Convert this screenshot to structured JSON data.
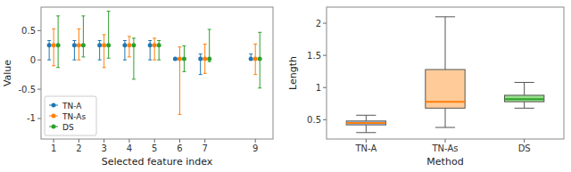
{
  "chart_data": [
    {
      "type": "errorbar",
      "xlabel": "Selected feature index",
      "ylabel": "Value",
      "x": [
        1,
        2,
        3,
        4,
        5,
        6,
        7,
        9
      ],
      "xlim": [
        0.5,
        9.7
      ],
      "xticks": [
        1,
        2,
        3,
        4,
        5,
        6,
        7,
        9
      ],
      "ylim": [
        -1.35,
        0.9
      ],
      "yticks": [
        -1,
        -0.5,
        0,
        0.5
      ],
      "grid": false,
      "legend": "lower left",
      "marker": "circle",
      "series": [
        {
          "name": "TN-A",
          "color": "#1f77b4",
          "values": [
            0.25,
            0.25,
            0.25,
            0.25,
            0.25,
            0.02,
            0.02,
            0.02
          ],
          "error_low": [
            0.25,
            0.25,
            0.25,
            0.25,
            0.25,
            0.02,
            0.27,
            0.02
          ],
          "error_high": [
            0.08,
            0.08,
            0.08,
            0.08,
            0.08,
            0.0,
            0.08,
            0.08
          ]
        },
        {
          "name": "TN-As",
          "color": "#ff7f0e",
          "values": [
            0.25,
            0.25,
            0.25,
            0.25,
            0.25,
            0.02,
            0.02,
            0.02
          ],
          "error_low": [
            0.35,
            0.25,
            0.38,
            0.2,
            0.25,
            0.95,
            0.25,
            0.27
          ],
          "error_high": [
            0.28,
            0.28,
            0.18,
            0.15,
            0.12,
            0.2,
            0.25,
            0.25
          ]
        },
        {
          "name": "DS",
          "color": "#2ca02c",
          "values": [
            0.25,
            0.25,
            0.25,
            0.25,
            0.25,
            0.02,
            0.02,
            0.02
          ],
          "error_low": [
            0.38,
            0.2,
            0.22,
            0.58,
            0.25,
            0.22,
            0.05,
            0.5
          ],
          "error_high": [
            0.5,
            0.5,
            0.58,
            0.12,
            0.08,
            0.22,
            0.5,
            0.45
          ]
        }
      ]
    },
    {
      "type": "box",
      "xlabel": "Method",
      "ylabel": "Length",
      "categories": [
        "TN-A",
        "TN-As",
        "DS"
      ],
      "whislo": [
        0.3,
        0.38,
        0.68
      ],
      "q1": [
        0.42,
        0.68,
        0.78
      ],
      "med": [
        0.45,
        0.78,
        0.82
      ],
      "q3": [
        0.48,
        1.28,
        0.88
      ],
      "whishi": [
        0.57,
        2.1,
        1.08
      ],
      "colors": [
        "#aec7e8",
        "#ffcc99",
        "#98df8a"
      ],
      "median_colors": [
        "#ff7f0e",
        "#ff7f0e",
        "#2ca02c"
      ],
      "ylim": [
        0.2,
        2.25
      ],
      "yticks": [
        0.5,
        1,
        1.5,
        2
      ],
      "grid": false
    }
  ]
}
